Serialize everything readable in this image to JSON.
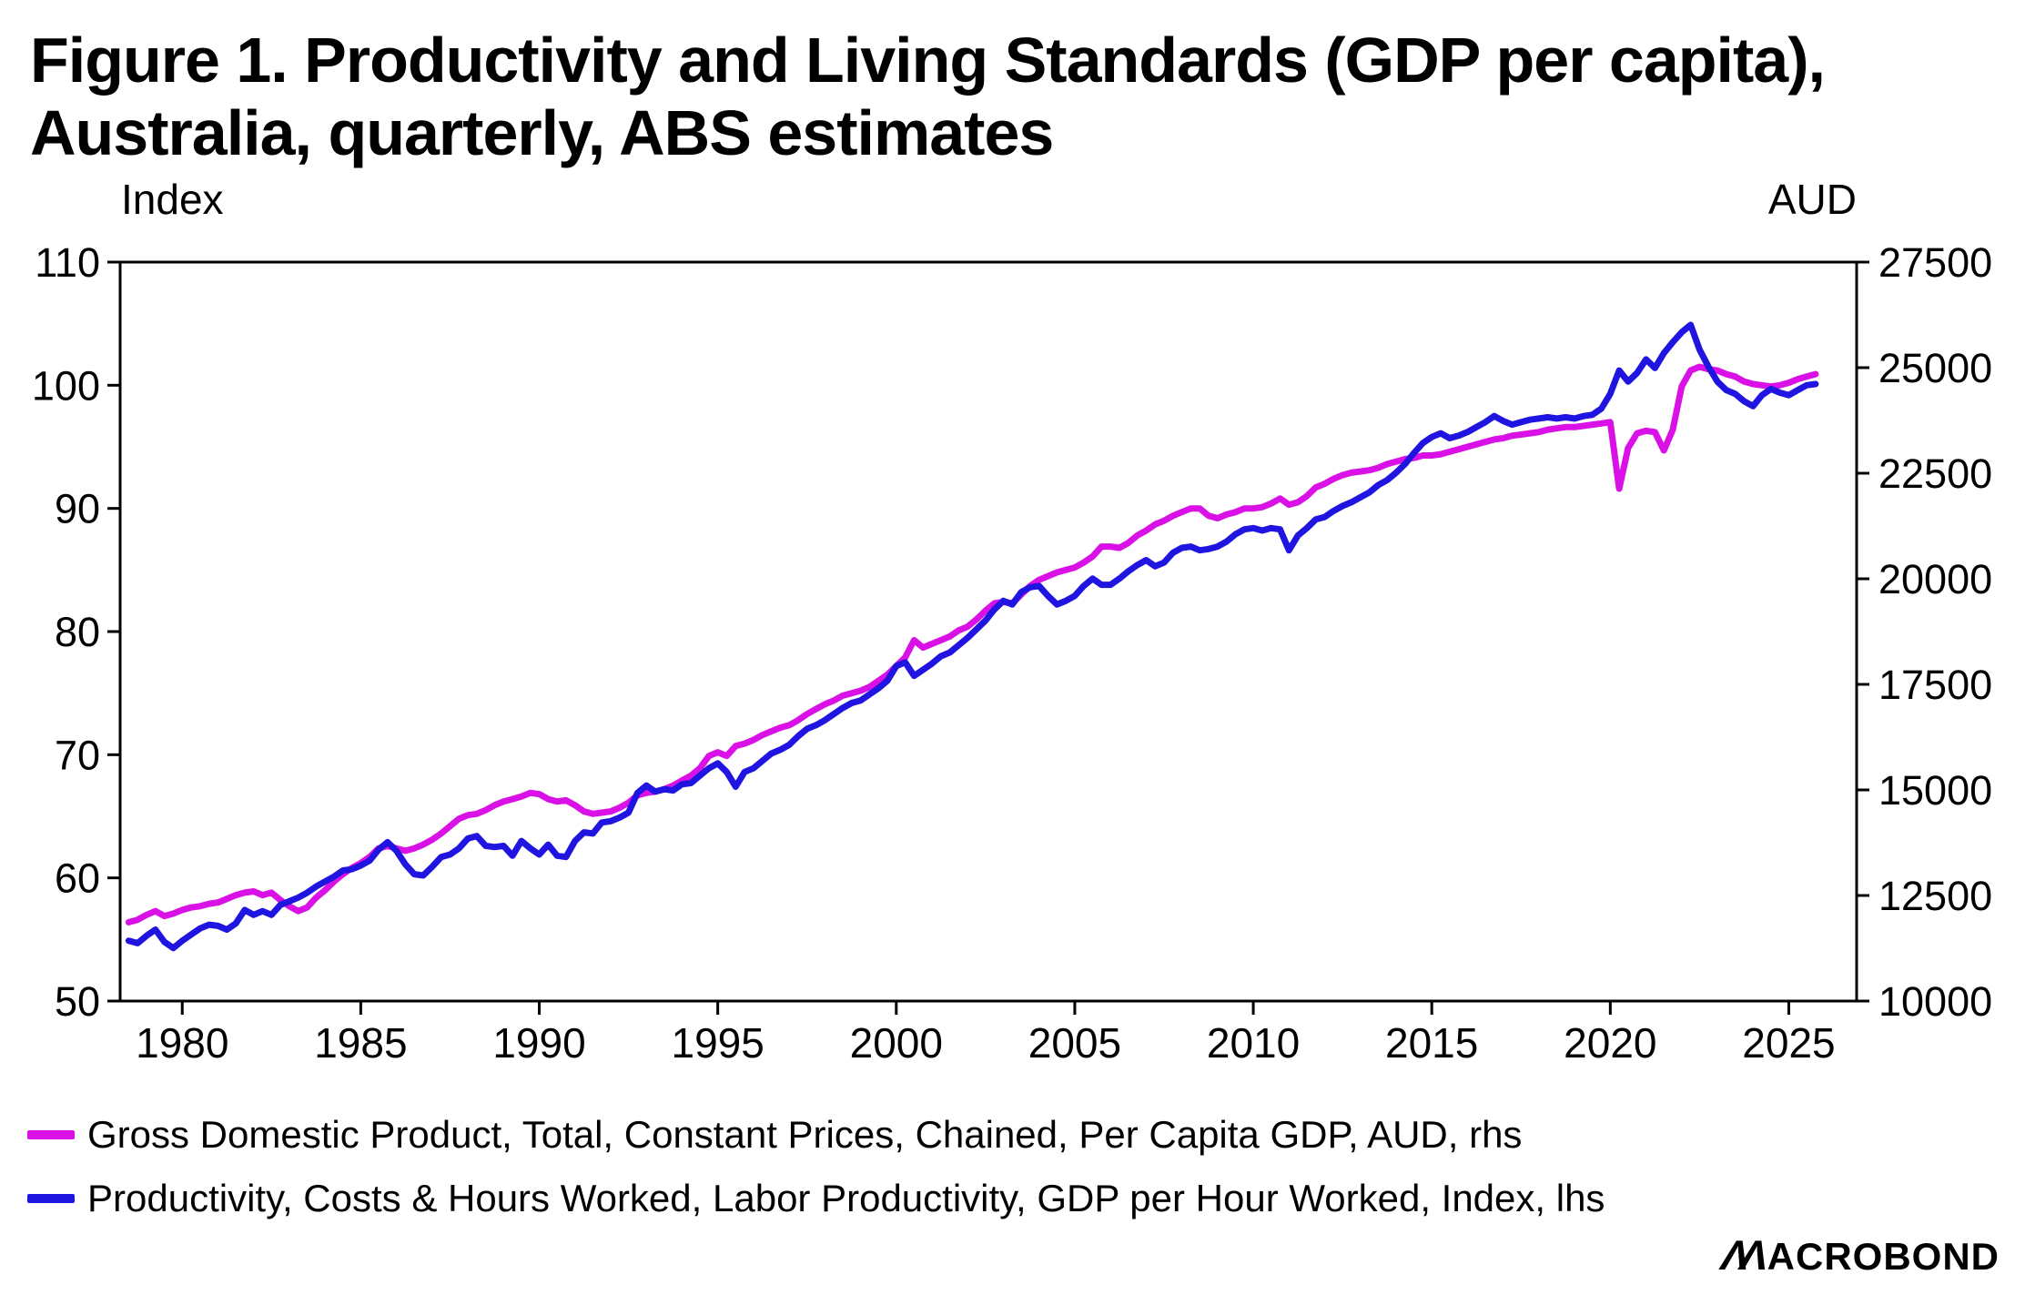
{
  "title": {
    "line1": "Figure 1. Productivity and Living Standards (GDP per capita),",
    "line2": "Australia, quarterly, ABS estimates"
  },
  "axes": {
    "left_unit": "Index",
    "right_unit": "AUD",
    "left_ticks": [
      110,
      100,
      90,
      80,
      70,
      60,
      50
    ],
    "right_ticks": [
      27500,
      25000,
      22500,
      20000,
      17500,
      15000,
      12500,
      10000
    ],
    "x_ticks": [
      1980,
      1985,
      1990,
      1995,
      2000,
      2005,
      2010,
      2015,
      2020,
      2025
    ]
  },
  "legend": [
    {
      "label": "Gross Domestic Product, Total, Constant Prices, Chained, Per Capita GDP, AUD, rhs",
      "color": "#d911e6"
    },
    {
      "label": "Productivity, Costs & Hours Worked, Labor Productivity, GDP per Hour Worked, Index, lhs",
      "color": "#2014e0"
    }
  ],
  "branding": {
    "logo_m": "ΛΛ",
    "logo_rest": "ACROBOND"
  },
  "colors": {
    "axis": "#000000",
    "background": "#ffffff",
    "gdp_line": "#d911e6",
    "productivity_line": "#2014e0"
  },
  "chart_data": {
    "type": "line",
    "title": "Figure 1. Productivity and Living Standards (GDP per capita), Australia, quarterly, ABS estimates",
    "x_start": 1978.5,
    "x_step": 0.25,
    "frequency": "quarterly",
    "x_range_axis": [
      1978.26,
      2026.9
    ],
    "left_axis": {
      "label": "Index",
      "range": [
        50,
        110
      ]
    },
    "right_axis": {
      "label": "AUD",
      "range": [
        10000,
        27500
      ]
    },
    "grid": false,
    "legend_position": "bottom-left",
    "series": [
      {
        "name": "Gross Domestic Product, Total, Constant Prices, Chained, Per Capita GDP, AUD, rhs",
        "axis": "right",
        "unit": "AUD",
        "color": "#d911e6",
        "values": [
          11867,
          11925,
          12042,
          12129,
          12013,
          12071,
          12158,
          12217,
          12246,
          12304,
          12333,
          12421,
          12508,
          12567,
          12596,
          12508,
          12567,
          12392,
          12246,
          12129,
          12217,
          12450,
          12625,
          12829,
          13004,
          13150,
          13267,
          13413,
          13617,
          13675,
          13617,
          13558,
          13617,
          13704,
          13821,
          13967,
          14142,
          14317,
          14404,
          14433,
          14521,
          14638,
          14725,
          14783,
          14842,
          14929,
          14900,
          14783,
          14725,
          14754,
          14638,
          14492,
          14433,
          14462,
          14492,
          14579,
          14696,
          14871,
          14929,
          14958,
          15017,
          15104,
          15221,
          15338,
          15513,
          15804,
          15892,
          15804,
          16038,
          16096,
          16183,
          16300,
          16388,
          16475,
          16533,
          16650,
          16796,
          16913,
          17029,
          17117,
          17233,
          17292,
          17350,
          17438,
          17583,
          17729,
          17933,
          18138,
          18546,
          18371,
          18458,
          18546,
          18633,
          18779,
          18867,
          19042,
          19246,
          19421,
          19450,
          19421,
          19625,
          19829,
          19975,
          20063,
          20150,
          20208,
          20267,
          20383,
          20529,
          20763,
          20763,
          20733,
          20850,
          21025,
          21142,
          21288,
          21375,
          21492,
          21579,
          21667,
          21667,
          21492,
          21433,
          21521,
          21579,
          21667,
          21667,
          21696,
          21783,
          21900,
          21754,
          21813,
          21958,
          22163,
          22250,
          22367,
          22454,
          22513,
          22542,
          22571,
          22629,
          22717,
          22775,
          22833,
          22863,
          22921,
          22921,
          22950,
          23008,
          23067,
          23125,
          23183,
          23242,
          23300,
          23329,
          23388,
          23417,
          23446,
          23475,
          23533,
          23563,
          23592,
          23592,
          23621,
          23650,
          23679,
          23708,
          22133,
          23096,
          23446,
          23504,
          23475,
          23038,
          23533,
          24554,
          24933,
          25021,
          24963,
          24933,
          24846,
          24788,
          24671,
          24613,
          24583,
          24554,
          24583,
          24642,
          24729,
          24788,
          24846
        ]
      },
      {
        "name": "Productivity, Costs & Hours Worked, Labor Productivity, GDP per Hour Worked, Index, lhs",
        "axis": "left",
        "unit": "Index",
        "color": "#2014e0",
        "values": [
          54.9,
          54.7,
          55.3,
          55.8,
          54.8,
          54.3,
          54.9,
          55.4,
          55.9,
          56.2,
          56.1,
          55.8,
          56.3,
          57.4,
          57.0,
          57.3,
          57.0,
          57.8,
          58.1,
          58.4,
          58.8,
          59.3,
          59.7,
          60.1,
          60.6,
          60.7,
          61.0,
          61.4,
          62.3,
          62.9,
          62.2,
          61.1,
          60.3,
          60.2,
          60.9,
          61.7,
          61.9,
          62.4,
          63.2,
          63.4,
          62.6,
          62.5,
          62.6,
          61.8,
          63.0,
          62.4,
          61.9,
          62.7,
          61.8,
          61.7,
          63.0,
          63.7,
          63.6,
          64.5,
          64.6,
          64.9,
          65.3,
          66.9,
          67.5,
          67.0,
          67.2,
          67.1,
          67.6,
          67.7,
          68.3,
          68.9,
          69.3,
          68.6,
          67.4,
          68.6,
          68.9,
          69.5,
          70.1,
          70.4,
          70.8,
          71.5,
          72.1,
          72.4,
          72.8,
          73.3,
          73.8,
          74.2,
          74.4,
          74.9,
          75.4,
          76.0,
          77.2,
          77.5,
          76.4,
          76.9,
          77.4,
          78.0,
          78.3,
          78.9,
          79.5,
          80.2,
          80.9,
          81.8,
          82.5,
          82.2,
          83.2,
          83.6,
          83.7,
          82.9,
          82.2,
          82.5,
          82.9,
          83.7,
          84.3,
          83.8,
          83.8,
          84.3,
          84.9,
          85.4,
          85.8,
          85.3,
          85.6,
          86.4,
          86.8,
          86.9,
          86.6,
          86.7,
          86.9,
          87.3,
          87.9,
          88.3,
          88.4,
          88.2,
          88.4,
          88.3,
          86.6,
          87.8,
          88.4,
          89.1,
          89.3,
          89.8,
          90.2,
          90.5,
          90.9,
          91.3,
          91.9,
          92.3,
          92.9,
          93.6,
          94.5,
          95.3,
          95.8,
          96.1,
          95.7,
          95.9,
          96.2,
          96.6,
          97.0,
          97.5,
          97.1,
          96.8,
          97.0,
          97.2,
          97.3,
          97.4,
          97.3,
          97.4,
          97.3,
          97.5,
          97.6,
          98.1,
          99.3,
          101.2,
          100.3,
          101.0,
          102.1,
          101.4,
          102.6,
          103.5,
          104.3,
          104.9,
          102.9,
          101.5,
          100.3,
          99.6,
          99.3,
          98.7,
          98.3,
          99.2,
          99.7,
          99.4,
          99.2,
          99.6,
          100.0,
          100.1
        ]
      }
    ]
  }
}
